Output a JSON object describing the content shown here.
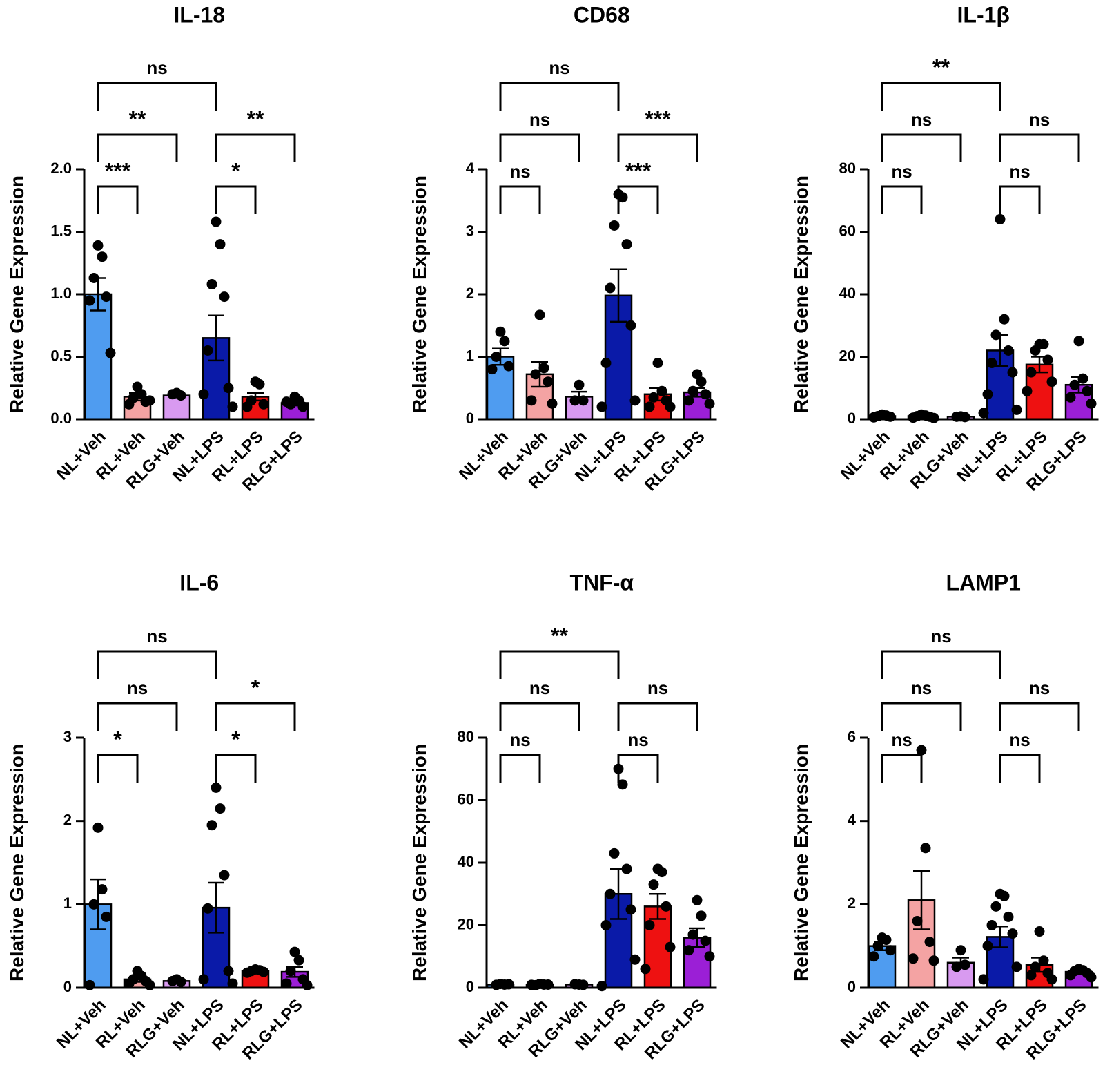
{
  "chart_data": [
    {
      "type": "bar",
      "title": "IL-18",
      "ylabel": "Relative Gene Expression",
      "categories": [
        "NL+Veh",
        "RL+Veh",
        "RLG+Veh",
        "NL+LPS",
        "RL+LPS",
        "RLG+LPS"
      ],
      "colors": [
        "#4f9cf0",
        "#f4a3a3",
        "#d89af0",
        "#0a1aa8",
        "#ee1111",
        "#9b1fd6"
      ],
      "values": [
        1.0,
        0.18,
        0.19,
        0.65,
        0.18,
        0.13
      ],
      "errors": [
        0.13,
        0.03,
        0.01,
        0.18,
        0.03,
        0.02
      ],
      "points": [
        [
          1.39,
          1.3,
          1.13,
          0.98,
          0.95,
          0.53
        ],
        [
          0.26,
          0.2,
          0.17,
          0.14,
          0.12,
          0.15
        ],
        [
          0.21,
          0.19,
          0.2
        ],
        [
          1.58,
          1.4,
          1.08,
          0.98,
          0.55,
          0.25,
          0.2,
          0.1
        ],
        [
          0.3,
          0.28,
          0.15,
          0.12,
          0.1
        ],
        [
          0.18,
          0.15,
          0.12,
          0.1,
          0.14
        ]
      ],
      "ylim": [
        0,
        2
      ],
      "yticks": [
        {
          "value": 0,
          "label": "0.0"
        },
        0.5,
        {
          "value": 1,
          "label": "1.0"
        },
        1.5,
        {
          "value": 2,
          "label": "2.0"
        }
      ],
      "brackets": [
        {
          "from": 0,
          "to": 1,
          "label": "***"
        },
        {
          "from": 3,
          "to": 4,
          "label": "*"
        },
        {
          "from": 0,
          "to": 2,
          "label": "**"
        },
        {
          "from": 3,
          "to": 5,
          "label": "**"
        },
        {
          "from": 0,
          "to": 3,
          "label": "ns"
        }
      ]
    },
    {
      "type": "bar",
      "title": "CD68",
      "ylabel": "Relative Gene Expression",
      "categories": [
        "NL+Veh",
        "RL+Veh",
        "RLG+Veh",
        "NL+LPS",
        "RL+LPS",
        "RLG+LPS"
      ],
      "colors": [
        "#4f9cf0",
        "#f4a3a3",
        "#d89af0",
        "#0a1aa8",
        "#ee1111",
        "#9b1fd6"
      ],
      "values": [
        1.0,
        0.72,
        0.36,
        1.98,
        0.4,
        0.43
      ],
      "errors": [
        0.13,
        0.2,
        0.08,
        0.42,
        0.1,
        0.07
      ],
      "points": [
        [
          1.4,
          1.25,
          1.0,
          0.85,
          0.8
        ],
        [
          1.67,
          0.82,
          0.72,
          0.6,
          0.3,
          0.25
        ],
        [
          0.55,
          0.3,
          0.3
        ],
        [
          3.6,
          3.55,
          3.1,
          2.8,
          2.1,
          1.5,
          0.9,
          0.3,
          0.2
        ],
        [
          0.9,
          0.45,
          0.35,
          0.3,
          0.2,
          0.2
        ],
        [
          0.72,
          0.6,
          0.45,
          0.4,
          0.3,
          0.25
        ]
      ],
      "ylim": [
        0,
        4
      ],
      "yticks": [
        0,
        1,
        2,
        3,
        4
      ],
      "brackets": [
        {
          "from": 0,
          "to": 1,
          "label": "ns"
        },
        {
          "from": 3,
          "to": 4,
          "label": "***"
        },
        {
          "from": 0,
          "to": 2,
          "label": "ns"
        },
        {
          "from": 3,
          "to": 5,
          "label": "***"
        },
        {
          "from": 0,
          "to": 3,
          "label": "ns"
        }
      ]
    },
    {
      "type": "bar",
      "title": "IL-1β",
      "ylabel": "Relative Gene Expression",
      "categories": [
        "NL+Veh",
        "RL+Veh",
        "RLG+Veh",
        "NL+LPS",
        "RL+LPS",
        "RLG+LPS"
      ],
      "colors": [
        "#4f9cf0",
        "#f4a3a3",
        "#d89af0",
        "#0a1aa8",
        "#ee1111",
        "#9b1fd6"
      ],
      "values": [
        1,
        1,
        0.8,
        22,
        17.5,
        11
      ],
      "errors": [
        0.3,
        0.3,
        0.2,
        5,
        2.5,
        2.5
      ],
      "points": [
        [
          1.5,
          1.2,
          1,
          0.8,
          0.6
        ],
        [
          1.5,
          1.2,
          1,
          0.8,
          0.5,
          0.4
        ],
        [
          0.9,
          0.7,
          0.8
        ],
        [
          64,
          32,
          27,
          22,
          18,
          15,
          8,
          3,
          2
        ],
        [
          24,
          24,
          22,
          19,
          15,
          12,
          9
        ],
        [
          25,
          13,
          11,
          9,
          7,
          5
        ]
      ],
      "ylim": [
        0,
        80
      ],
      "yticks": [
        0,
        20,
        40,
        60,
        80
      ],
      "brackets": [
        {
          "from": 0,
          "to": 1,
          "label": "ns"
        },
        {
          "from": 3,
          "to": 4,
          "label": "ns"
        },
        {
          "from": 0,
          "to": 2,
          "label": "ns"
        },
        {
          "from": 3,
          "to": 5,
          "label": "ns"
        },
        {
          "from": 0,
          "to": 3,
          "label": "**"
        }
      ]
    },
    {
      "type": "bar",
      "title": "IL-6",
      "ylabel": "Relative Gene Expression",
      "categories": [
        "NL+Veh",
        "RL+Veh",
        "RLG+Veh",
        "NL+LPS",
        "RL+LPS",
        "RLG+LPS"
      ],
      "colors": [
        "#4f9cf0",
        "#f4a3a3",
        "#d89af0",
        "#0a1aa8",
        "#ee1111",
        "#9b1fd6"
      ],
      "values": [
        1.0,
        0.1,
        0.08,
        0.96,
        0.2,
        0.19
      ],
      "errors": [
        0.3,
        0.03,
        0.02,
        0.3,
        0.02,
        0.06
      ],
      "points": [
        [
          1.92,
          1.18,
          1.0,
          0.85,
          0.03
        ],
        [
          0.2,
          0.14,
          0.1,
          0.08,
          0.05,
          0.03
        ],
        [
          0.1,
          0.07,
          0.08
        ],
        [
          2.4,
          2.15,
          1.95,
          1.35,
          0.95,
          0.2,
          0.1,
          0.05
        ],
        [
          0.22,
          0.21,
          0.2,
          0.19,
          0.18
        ],
        [
          0.43,
          0.33,
          0.2,
          0.1,
          0.05,
          0.03
        ]
      ],
      "ylim": [
        0,
        3
      ],
      "yticks": [
        0,
        1,
        2,
        3
      ],
      "brackets": [
        {
          "from": 0,
          "to": 1,
          "label": "*"
        },
        {
          "from": 3,
          "to": 4,
          "label": "*"
        },
        {
          "from": 0,
          "to": 2,
          "label": "ns"
        },
        {
          "from": 3,
          "to": 5,
          "label": "*"
        },
        {
          "from": 0,
          "to": 3,
          "label": "ns"
        }
      ]
    },
    {
      "type": "bar",
      "title": "TNF-α",
      "ylabel": "Relative Gene Expression",
      "categories": [
        "NL+Veh",
        "RL+Veh",
        "RLG+Veh",
        "NL+LPS",
        "RL+LPS",
        "RLG+LPS"
      ],
      "colors": [
        "#4f9cf0",
        "#f4a3a3",
        "#d89af0",
        "#0a1aa8",
        "#ee1111",
        "#9b1fd6"
      ],
      "values": [
        1,
        1,
        1,
        30,
        26,
        16
      ],
      "errors": [
        0.2,
        0.2,
        0.2,
        8,
        4,
        3
      ],
      "points": [
        [
          1.2,
          1,
          0.9,
          1.1
        ],
        [
          1.2,
          1,
          0.8,
          1,
          0.9
        ],
        [
          1,
          0.9,
          1.1
        ],
        [
          70,
          65,
          43,
          38,
          30,
          25,
          20,
          9,
          0.5
        ],
        [
          38,
          37,
          33,
          26,
          20,
          13,
          6
        ],
        [
          28,
          23,
          17,
          15,
          12,
          10
        ]
      ],
      "ylim": [
        0,
        80
      ],
      "yticks": [
        0,
        20,
        40,
        60,
        80
      ],
      "brackets": [
        {
          "from": 0,
          "to": 1,
          "label": "ns"
        },
        {
          "from": 3,
          "to": 4,
          "label": "ns"
        },
        {
          "from": 0,
          "to": 2,
          "label": "ns"
        },
        {
          "from": 3,
          "to": 5,
          "label": "ns"
        },
        {
          "from": 0,
          "to": 3,
          "label": "**"
        }
      ]
    },
    {
      "type": "bar",
      "title": "LAMP1",
      "ylabel": "Relative Gene Expression",
      "categories": [
        "NL+Veh",
        "RL+Veh",
        "RLG+Veh",
        "NL+LPS",
        "RL+LPS",
        "RLG+LPS"
      ],
      "colors": [
        "#4f9cf0",
        "#f4a3a3",
        "#d89af0",
        "#0a1aa8",
        "#ee1111",
        "#9b1fd6"
      ],
      "values": [
        1.0,
        2.1,
        0.6,
        1.22,
        0.55,
        0.38
      ],
      "errors": [
        0.1,
        0.7,
        0.12,
        0.25,
        0.17,
        0.05
      ],
      "points": [
        [
          1.2,
          1.15,
          1.0,
          0.9,
          0.75
        ],
        [
          5.7,
          3.35,
          1.6,
          1.1,
          0.7,
          0.65
        ],
        [
          0.9,
          0.55,
          0.5
        ],
        [
          2.25,
          2.2,
          1.95,
          1.7,
          1.5,
          1.3,
          1.0,
          0.5,
          0.2
        ],
        [
          1.35,
          0.65,
          0.5,
          0.35,
          0.3,
          0.2
        ],
        [
          0.45,
          0.42,
          0.4,
          0.35,
          0.3,
          0.25
        ]
      ],
      "ylim": [
        0,
        6
      ],
      "yticks": [
        0,
        2,
        4,
        6
      ],
      "brackets": [
        {
          "from": 0,
          "to": 1,
          "label": "ns"
        },
        {
          "from": 3,
          "to": 4,
          "label": "ns"
        },
        {
          "from": 0,
          "to": 2,
          "label": "ns"
        },
        {
          "from": 3,
          "to": 5,
          "label": "ns"
        },
        {
          "from": 0,
          "to": 3,
          "label": "ns"
        }
      ]
    }
  ]
}
